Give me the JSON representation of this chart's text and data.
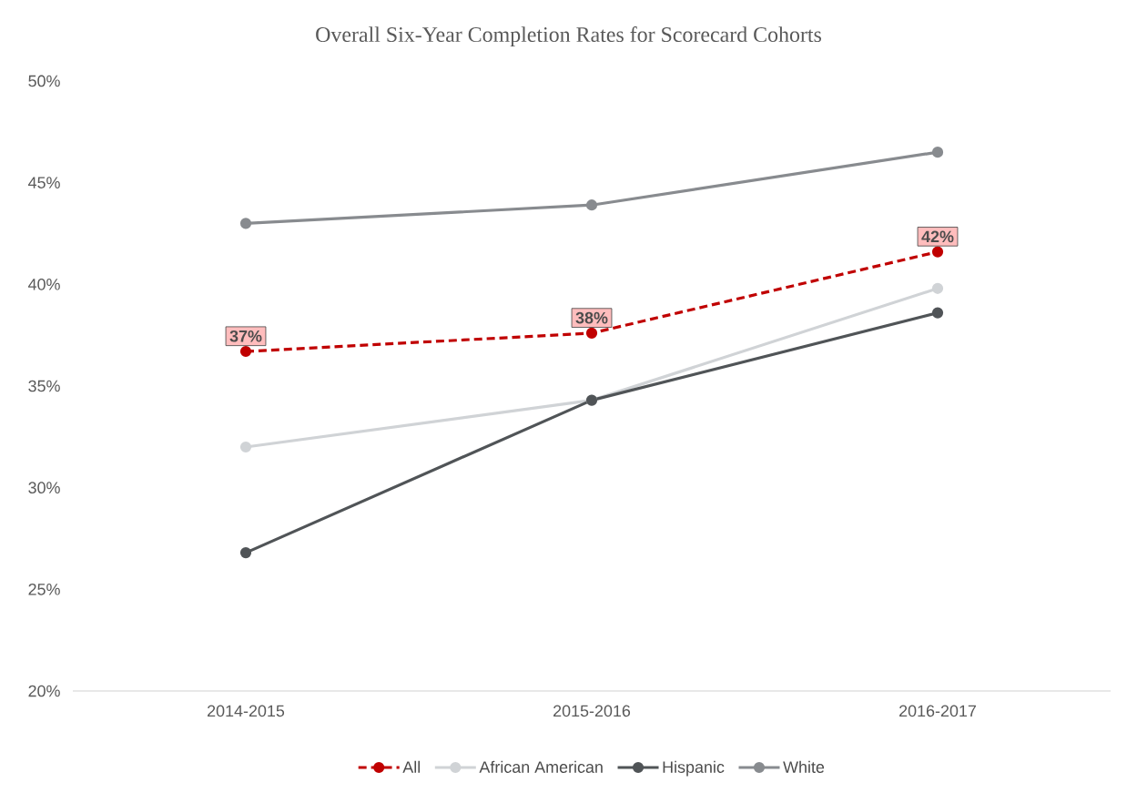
{
  "chart_data": {
    "type": "line",
    "title": "Overall Six-Year Completion Rates for Scorecard Cohorts",
    "categories": [
      "2014-2015",
      "2015-2016",
      "2016-2017"
    ],
    "series": [
      {
        "name": "All",
        "color": "#c00000",
        "line_style": "dashed",
        "values": [
          36.7,
          37.6,
          41.6
        ],
        "value_labels": [
          "37%",
          "38%",
          "42%"
        ]
      },
      {
        "name": "African American",
        "color": "#d0d3d6",
        "values": [
          32.0,
          34.3,
          39.8
        ]
      },
      {
        "name": "Hispanic",
        "color": "#505457",
        "values": [
          26.8,
          34.3,
          38.6
        ]
      },
      {
        "name": "White",
        "color": "#888b8f",
        "values": [
          43.0,
          43.9,
          46.5
        ]
      }
    ],
    "ylim": [
      20,
      50
    ],
    "yticks": [
      {
        "value": 20,
        "label": "20%"
      },
      {
        "value": 25,
        "label": "25%"
      },
      {
        "value": 30,
        "label": "30%"
      },
      {
        "value": 35,
        "label": "35%"
      },
      {
        "value": 40,
        "label": "40%"
      },
      {
        "value": 45,
        "label": "45%"
      },
      {
        "value": 50,
        "label": "50%"
      }
    ],
    "marker": "circle",
    "legend": "bottom",
    "grid": false
  }
}
